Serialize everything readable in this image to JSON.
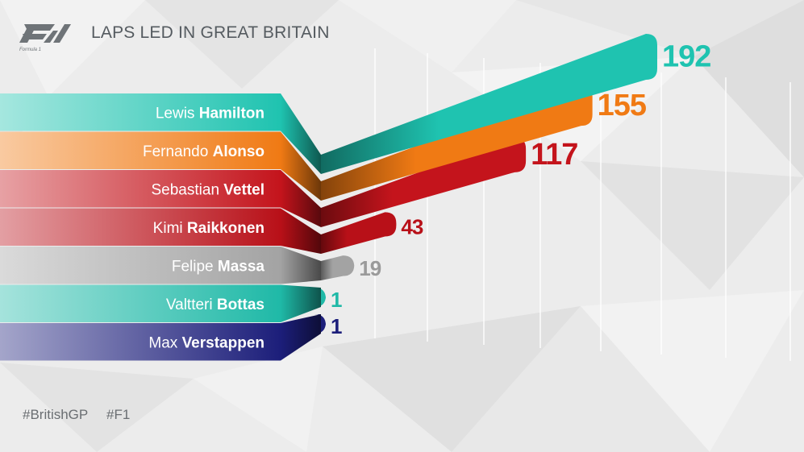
{
  "header": {
    "title": "LAPS LED IN GREAT BRITAIN",
    "logo_text": "F1 Formula 1"
  },
  "footer": {
    "hashtags": [
      "#BritishGP",
      "#F1"
    ]
  },
  "colors": {
    "background": "#ececec",
    "teal": "#1fc3b0",
    "orange": "#f07a14",
    "red": "#c4141c",
    "dark_red": "#b81018",
    "grey": "#a3a3a3",
    "navy": "#1c1e7a"
  },
  "chart_data": {
    "type": "bar",
    "title": "LAPS LED IN GREAT BRITAIN",
    "xlabel": "",
    "ylabel": "",
    "categories": [
      {
        "first": "Lewis",
        "last": "Hamilton"
      },
      {
        "first": "Fernando",
        "last": "Alonso"
      },
      {
        "first": "Sebastian",
        "last": "Vettel"
      },
      {
        "first": "Kimi",
        "last": "Raikkonen"
      },
      {
        "first": "Felipe",
        "last": "Massa"
      },
      {
        "first": "Valtteri",
        "last": "Bottas"
      },
      {
        "first": "Max",
        "last": "Verstappen"
      }
    ],
    "values": [
      192,
      155,
      117,
      43,
      19,
      1,
      1
    ],
    "value_labels": [
      "192",
      "155",
      "117",
      "43",
      "19",
      "1",
      "1"
    ],
    "bar_colors": [
      "#1fc3b0",
      "#f07a14",
      "#c4141c",
      "#b81018",
      "#a3a3a3",
      "#1fb9a7",
      "#1c1e7a"
    ],
    "label_colors": [
      "#1fc3b0",
      "#f07a14",
      "#c4141c",
      "#b81018",
      "#9a9a9a",
      "#1fb9a7",
      "#1c1e7a"
    ],
    "grid": true,
    "legend": "none"
  }
}
